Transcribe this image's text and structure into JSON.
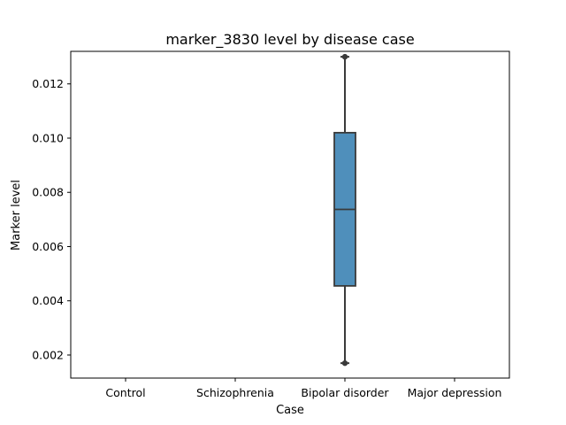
{
  "chart_data": {
    "type": "box",
    "title": "marker_3830 level by disease case",
    "xlabel": "Case",
    "ylabel": "Marker level",
    "categories": [
      "Control",
      "Schizophrenia",
      "Bipolar disorder",
      "Major depression"
    ],
    "ylim": [
      0.00115,
      0.0132
    ],
    "yticks": [
      0.002,
      0.004,
      0.006,
      0.008,
      0.01,
      0.012
    ],
    "ytick_labels": [
      "0.002",
      "0.004",
      "0.006",
      "0.008",
      "0.010",
      "0.012"
    ],
    "boxes": [
      {
        "category": "Bipolar disorder",
        "whisker_low": 0.0017,
        "q1": 0.00455,
        "median": 0.00737,
        "q3": 0.0102,
        "whisker_high": 0.013
      }
    ],
    "grid": false,
    "box_color": "#4f8fbb",
    "line_color": "#3a3a3a"
  }
}
